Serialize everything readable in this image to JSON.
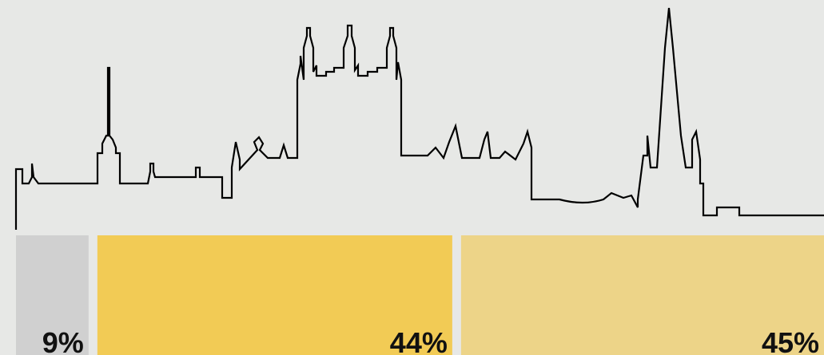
{
  "chart_data": {
    "type": "bar",
    "values": [
      9,
      44,
      45
    ],
    "value_labels": [
      "9%",
      "44%",
      "45%"
    ],
    "colors": [
      "#d0d0d0",
      "#f2cb55",
      "#edd488"
    ]
  }
}
